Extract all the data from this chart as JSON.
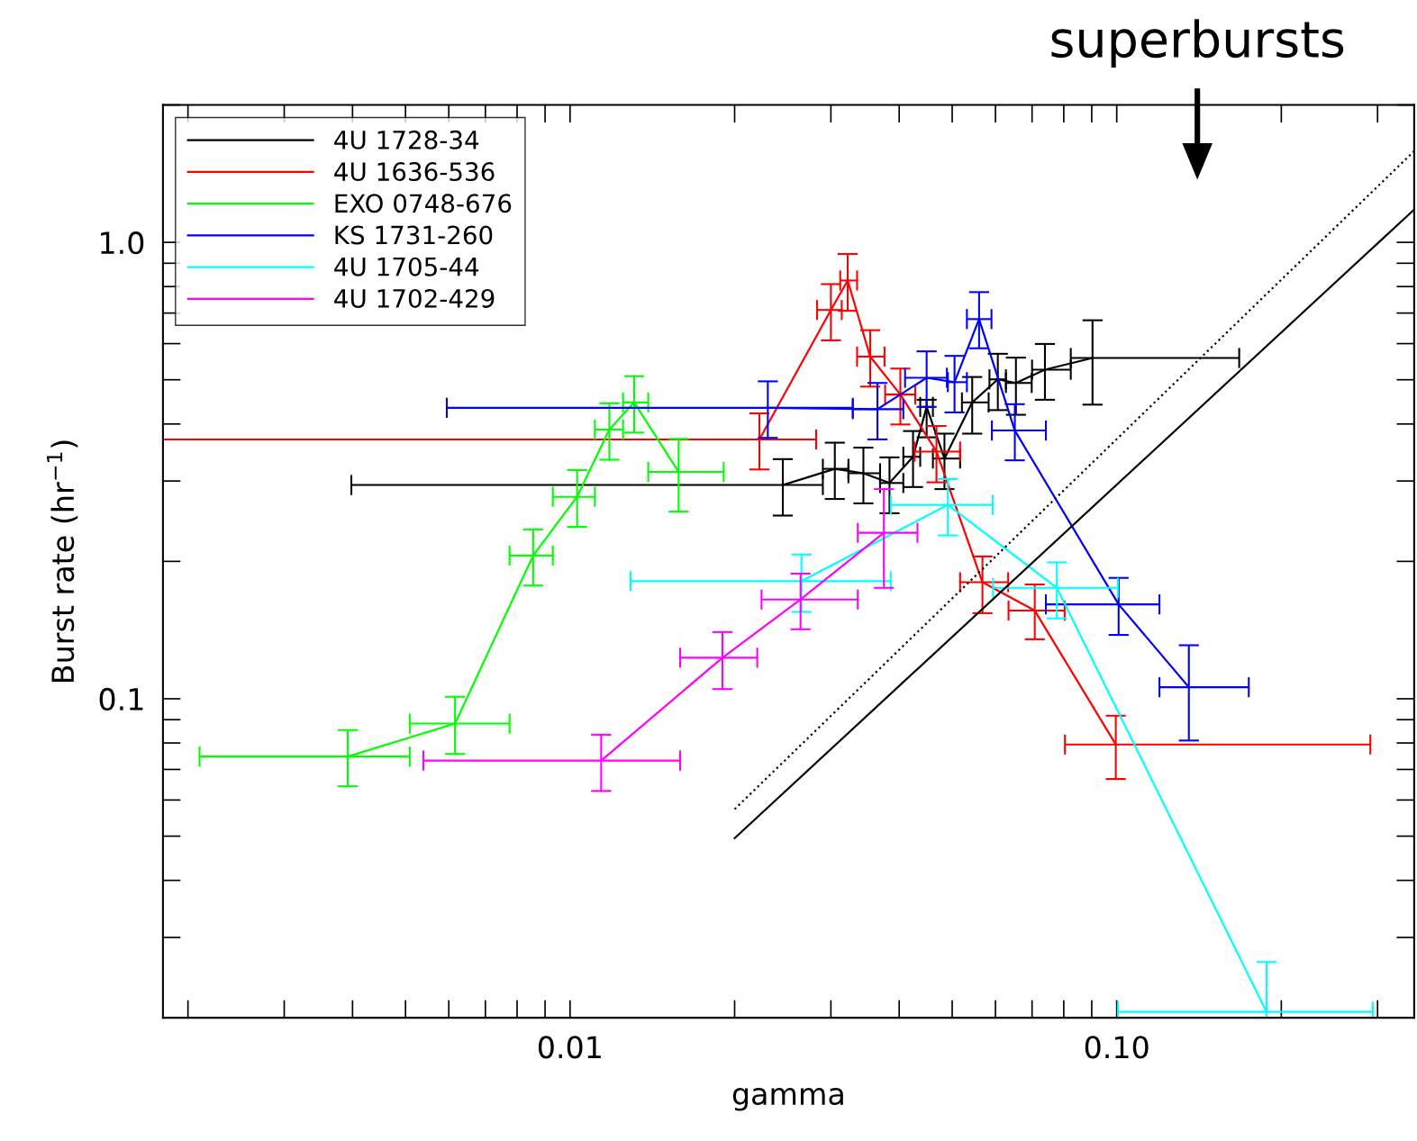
{
  "chart_data": {
    "type": "line",
    "xlabel": "gamma",
    "ylabel": "Burst rate (hr$^{−1}$)",
    "log": "xy",
    "grid": false,
    "legend": "top left",
    "marker": "none",
    "line_style": "solid",
    "xlim": [
      0.0018,
      0.35
    ],
    "ylim": [
      0.02,
      2.0
    ],
    "xticks": [
      0.01,
      {
        "value": 0.1,
        "label": "0.10"
      }
    ],
    "yticks": [
      0.1,
      {
        "value": 1,
        "label": "1.0"
      }
    ],
    "annotations": [
      "superbursts"
    ],
    "series": [
      {
        "name": "4U 1728-34",
        "color": "#000000",
        "x": [
          0.0245,
          0.0305,
          0.0344,
          0.0384,
          0.0424,
          0.0449,
          0.0484,
          0.0544,
          0.0606,
          0.0654,
          0.0739,
          0.0903
        ],
        "values": [
          0.294,
          0.319,
          0.312,
          0.297,
          0.339,
          0.436,
          0.336,
          0.446,
          0.501,
          0.492,
          0.526,
          0.558
        ],
        "errors": [
          [
            0.252,
            0.335
          ],
          [
            0.274,
            0.364
          ],
          [
            0.268,
            0.355
          ],
          [
            0.255,
            0.338
          ],
          [
            0.291,
            0.386
          ],
          [
            0.374,
            0.452
          ],
          [
            0.288,
            0.381
          ],
          [
            0.381,
            0.507
          ],
          [
            0.429,
            0.57
          ],
          [
            0.419,
            0.559
          ],
          [
            0.452,
            0.599
          ],
          [
            0.441,
            0.675
          ]
        ],
        "xerrors": [
          [
            0.00398,
            0.029
          ],
          [
            0.029,
            0.0323
          ],
          [
            0.0323,
            0.0369
          ],
          [
            0.0369,
            0.0407
          ],
          [
            0.0407,
            0.0437
          ],
          [
            0.0437,
            0.0461
          ],
          [
            0.0461,
            0.0517
          ],
          [
            0.0521,
            0.0583
          ],
          [
            0.0585,
            0.0627
          ],
          [
            0.0627,
            0.0699
          ],
          [
            0.07,
            0.0824
          ],
          [
            0.0824,
            0.1675
          ]
        ]
      },
      {
        "name": "4U 1636-536",
        "color": "#ff0000",
        "x": [
          0.0222,
          0.03,
          0.0322,
          0.0354,
          0.0402,
          0.0468,
          0.0568,
          0.0708,
          0.0996
        ],
        "values": [
          0.37,
          0.711,
          0.825,
          0.562,
          0.464,
          0.348,
          0.18,
          0.156,
          0.0794
        ],
        "errors": [
          [
            0.318,
            0.422
          ],
          [
            0.61,
            0.81
          ],
          [
            0.708,
            0.943
          ],
          [
            0.483,
            0.642
          ],
          [
            0.399,
            0.529
          ],
          [
            0.298,
            0.396
          ],
          [
            0.154,
            0.205
          ],
          [
            0.135,
            0.178
          ],
          [
            0.0667,
            0.0918
          ]
        ],
        "xerrors": [
          [
            0.0018,
            0.0282
          ],
          [
            0.0283,
            0.0314
          ],
          [
            0.0312,
            0.0335
          ],
          [
            0.0335,
            0.0376
          ],
          [
            0.0377,
            0.0428
          ],
          [
            0.0427,
            0.0517
          ],
          [
            0.0517,
            0.0633
          ],
          [
            0.0634,
            0.0803
          ],
          [
            0.0804,
            0.291
          ]
        ]
      },
      {
        "name": "EXO 0748-676",
        "color": "#00ff00",
        "x": [
          0.00392,
          0.00616,
          0.00856,
          0.0103,
          0.0118,
          0.0131,
          0.0158
        ],
        "values": [
          0.0747,
          0.0882,
          0.206,
          0.277,
          0.389,
          0.446,
          0.314
        ],
        "errors": [
          [
            0.0643,
            0.0854
          ],
          [
            0.0757,
            0.101
          ],
          [
            0.177,
            0.235
          ],
          [
            0.238,
            0.317
          ],
          [
            0.334,
            0.444
          ],
          [
            0.383,
            0.509
          ],
          [
            0.257,
            0.371
          ]
        ],
        "xerrors": [
          [
            0.0021,
            0.00509
          ],
          [
            0.00509,
            0.00775
          ],
          [
            0.00775,
            0.0093
          ],
          [
            0.0093,
            0.0111
          ],
          [
            0.0111,
            0.0125
          ],
          [
            0.0125,
            0.0139
          ],
          [
            0.0139,
            0.0191
          ]
        ]
      },
      {
        "name": "KS 1731-260",
        "color": "#0000ff",
        "x": [
          0.023,
          0.0365,
          0.0449,
          0.0505,
          0.056,
          0.0651,
          0.1008,
          0.1355
        ],
        "values": [
          0.434,
          0.431,
          0.505,
          0.494,
          0.679,
          0.387,
          0.161,
          0.106
        ],
        "errors": [
          [
            0.373,
            0.496
          ],
          [
            0.37,
            0.492
          ],
          [
            0.436,
            0.577
          ],
          [
            0.424,
            0.564
          ],
          [
            0.586,
            0.778
          ],
          [
            0.333,
            0.442
          ],
          [
            0.138,
            0.184
          ],
          [
            0.081,
            0.131
          ]
        ],
        "xerrors": [
          [
            0.00595,
            0.0329
          ],
          [
            0.0329,
            0.0407
          ],
          [
            0.041,
            0.0489
          ],
          [
            0.0491,
            0.0532
          ],
          [
            0.0532,
            0.059
          ],
          [
            0.0591,
            0.0742
          ],
          [
            0.0742,
            0.1197
          ],
          [
            0.1197,
            0.1744
          ]
        ]
      },
      {
        "name": "4U 1705-44",
        "color": "#00ffff",
        "x": [
          0.0265,
          0.0491,
          0.0777,
          0.188
        ],
        "values": [
          0.181,
          0.266,
          0.175,
          0.0206
        ],
        "errors": [
          [
            0.155,
            0.207
          ],
          [
            0.228,
            0.303
          ],
          [
            0.15,
            0.199
          ],
          [
            0.02,
            0.0265
          ]
        ],
        "xerrors": [
          [
            0.0129,
            0.0386
          ],
          [
            0.0386,
            0.0593
          ],
          [
            0.0594,
            0.1005
          ],
          [
            0.1005,
            0.294
          ]
        ]
      },
      {
        "name": "4U 1702-429",
        "color": "#ff00ff",
        "x": [
          0.0114,
          0.019,
          0.0264,
          0.0375
        ],
        "values": [
          0.0732,
          0.123,
          0.165,
          0.231
        ],
        "errors": [
          [
            0.0628,
            0.0834
          ],
          [
            0.105,
            0.14
          ],
          [
            0.142,
            0.188
          ],
          [
            0.175,
            0.288
          ]
        ],
        "xerrors": [
          [
            0.00539,
            0.0159
          ],
          [
            0.0159,
            0.022
          ],
          [
            0.0224,
            0.0336
          ],
          [
            0.0336,
            0.0432
          ]
        ]
      },
      {
        "type": "line",
        "color": "#000000",
        "line_style": "dotted",
        "x": [
          0.02,
          0.35
        ],
        "values": [
          0.0573,
          1.585
        ]
      },
      {
        "type": "line",
        "color": "#000000",
        "line_style": "solid",
        "x": [
          0.02,
          0.35
        ],
        "values": [
          0.0495,
          1.18
        ]
      }
    ]
  }
}
